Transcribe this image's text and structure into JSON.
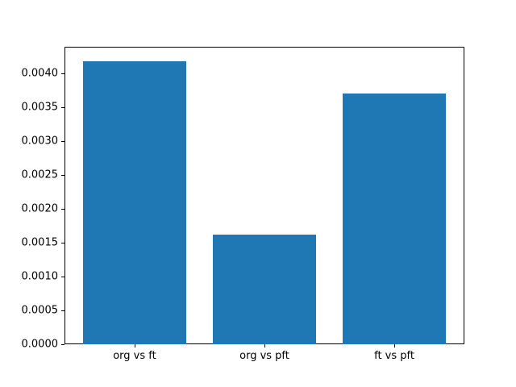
{
  "figure": {
    "background": "#ffffff",
    "axis_color": "#000000",
    "bar_color": "#1f77b4"
  },
  "chart_data": {
    "type": "bar",
    "title": "",
    "xlabel": "",
    "ylabel": "",
    "categories": [
      "org vs ft",
      "org vs pft",
      "ft vs pft"
    ],
    "values": [
      0.00418,
      0.00162,
      0.0037
    ],
    "bar_width_fraction": 0.8,
    "xlim": [
      -0.54,
      2.54
    ],
    "ylim": [
      0,
      0.004389
    ],
    "yticks": [
      {
        "value": 0.0,
        "label": "0.0000"
      },
      {
        "value": 0.0005,
        "label": "0.0005"
      },
      {
        "value": 0.001,
        "label": "0.0010"
      },
      {
        "value": 0.0015,
        "label": "0.0015"
      },
      {
        "value": 0.002,
        "label": "0.0020"
      },
      {
        "value": 0.0025,
        "label": "0.0025"
      },
      {
        "value": 0.003,
        "label": "0.0030"
      },
      {
        "value": 0.0035,
        "label": "0.0035"
      },
      {
        "value": 0.004,
        "label": "0.0040"
      }
    ],
    "grid": false,
    "legend": null
  }
}
